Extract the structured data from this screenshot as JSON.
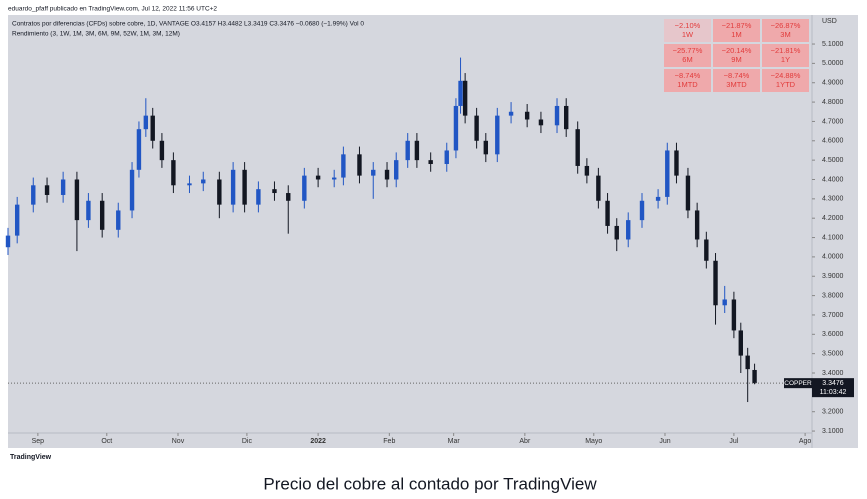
{
  "chart_data": {
    "type": "candlestick",
    "attribution": "eduardo_pfaff publicado en TradingView.com, Jul 12, 2022 11:56 UTC+2",
    "legend": "Contratos por diferencias (CFDs) sobre cobre, 1D, VANTAGE  O3.4157  H3.4482  L3.3419  C3.3476  −0.0680 (−1.99%)  Vol 0",
    "indicator": "Rendimiento (3, 1W, 1M, 3M, 6M, 9M, 52W, 1M, 3M, 12M)",
    "y_unit": "USD",
    "symbol": "COPPER",
    "countdown": "11:03:42",
    "logo": "TradingView",
    "caption": "Precio del cobre al contado por TradingView",
    "up_color": "#2156c4",
    "down_color": "#131722",
    "performance": [
      {
        "value": "−2.10%",
        "period": "1W"
      },
      {
        "value": "−21.87%",
        "period": "1M"
      },
      {
        "value": "−26.87%",
        "period": "3M"
      },
      {
        "value": "−25.77%",
        "period": "6M"
      },
      {
        "value": "−20.14%",
        "period": "9M"
      },
      {
        "value": "−21.81%",
        "period": "1Y"
      },
      {
        "value": "−8.74%",
        "period": "1MTD"
      },
      {
        "value": "−8.74%",
        "period": "3MTD"
      },
      {
        "value": "−24.88%",
        "period": "1YTD"
      }
    ],
    "xlim": [
      18,
      368
    ],
    "xticks": [
      {
        "value": 31,
        "label": "Sep"
      },
      {
        "value": 61,
        "label": "Oct"
      },
      {
        "value": 92,
        "label": "Nov"
      },
      {
        "value": 122,
        "label": "Dic"
      },
      {
        "value": 153,
        "label": "2022"
      },
      {
        "value": 184,
        "label": "Feb"
      },
      {
        "value": 212,
        "label": "Mar"
      },
      {
        "value": 243,
        "label": "Abr"
      },
      {
        "value": 273,
        "label": "Mayo"
      },
      {
        "value": 304,
        "label": "Jun"
      },
      {
        "value": 334,
        "label": "Jul"
      },
      {
        "value": 365,
        "label": "Ago"
      }
    ],
    "ylim": [
      3.09,
      5.25
    ],
    "yticks": [
      {
        "value": 3.1,
        "label": "3.1000"
      },
      {
        "value": 3.2,
        "label": "3.2000"
      },
      {
        "value": 3.3,
        "label": "3.3000"
      },
      {
        "value": 3.4,
        "label": "3.4000"
      },
      {
        "value": 3.5,
        "label": "3.5000"
      },
      {
        "value": 3.6,
        "label": "3.6000"
      },
      {
        "value": 3.7,
        "label": "3.7000"
      },
      {
        "value": 3.8,
        "label": "3.8000"
      },
      {
        "value": 3.9,
        "label": "3.9000"
      },
      {
        "value": 4.0,
        "label": "4.0000"
      },
      {
        "value": 4.1,
        "label": "4.1000"
      },
      {
        "value": 4.2,
        "label": "4.2000"
      },
      {
        "value": 4.3,
        "label": "4.3000"
      },
      {
        "value": 4.4,
        "label": "4.4000"
      },
      {
        "value": 4.5,
        "label": "4.5000"
      },
      {
        "value": 4.6,
        "label": "4.6000"
      },
      {
        "value": 4.7,
        "label": "4.7000"
      },
      {
        "value": 4.8,
        "label": "4.8000"
      },
      {
        "value": 4.9,
        "label": "4.9000"
      },
      {
        "value": 5.0,
        "label": "5.0000"
      },
      {
        "value": 5.1,
        "label": "5.1000"
      }
    ],
    "x": [
      18,
      22,
      29,
      35,
      42,
      48,
      53,
      59,
      66,
      72,
      75,
      78,
      81,
      85,
      90,
      97,
      103,
      110,
      116,
      121,
      127,
      134,
      140,
      147,
      153,
      160,
      164,
      171,
      177,
      183,
      187,
      192,
      196,
      202,
      209,
      213,
      215,
      217,
      222,
      226,
      231,
      237,
      244,
      250,
      257,
      261,
      266,
      270,
      275,
      279,
      283,
      288,
      294,
      301,
      305,
      309,
      314,
      318,
      322,
      326,
      330,
      334,
      337,
      340,
      343
    ],
    "open": [
      4.05,
      4.11,
      4.27,
      4.37,
      4.32,
      4.4,
      4.19,
      4.29,
      4.14,
      4.24,
      4.45,
      4.66,
      4.73,
      4.6,
      4.5,
      4.37,
      4.38,
      4.4,
      4.27,
      4.45,
      4.27,
      4.35,
      4.33,
      4.29,
      4.42,
      4.4,
      4.41,
      4.53,
      4.42,
      4.45,
      4.4,
      4.5,
      4.6,
      4.5,
      4.48,
      4.55,
      4.78,
      4.91,
      4.73,
      4.6,
      4.53,
      4.73,
      4.75,
      4.71,
      4.68,
      4.78,
      4.66,
      4.47,
      4.42,
      4.29,
      4.16,
      4.09,
      4.19,
      4.29,
      4.31,
      4.55,
      4.42,
      4.24,
      4.09,
      3.98,
      3.75,
      3.78,
      3.62,
      3.49,
      3.4157
    ],
    "high": [
      4.15,
      4.31,
      4.41,
      4.41,
      4.44,
      4.44,
      4.33,
      4.33,
      4.28,
      4.49,
      4.7,
      4.82,
      4.77,
      4.64,
      4.54,
      4.42,
      4.44,
      4.44,
      4.49,
      4.49,
      4.39,
      4.39,
      4.37,
      4.46,
      4.46,
      4.45,
      4.57,
      4.57,
      4.49,
      4.49,
      4.54,
      4.64,
      4.64,
      4.54,
      4.59,
      4.82,
      5.03,
      4.95,
      4.77,
      4.64,
      4.77,
      4.8,
      4.79,
      4.75,
      4.82,
      4.82,
      4.7,
      4.51,
      4.46,
      4.33,
      4.2,
      4.23,
      4.33,
      4.35,
      4.59,
      4.59,
      4.46,
      4.28,
      4.13,
      4.02,
      3.85,
      3.82,
      3.66,
      3.53,
      3.4482
    ],
    "low": [
      4.01,
      4.07,
      4.23,
      4.28,
      4.28,
      4.03,
      4.15,
      4.1,
      4.1,
      4.2,
      4.41,
      4.62,
      4.56,
      4.46,
      4.33,
      4.33,
      4.34,
      4.2,
      4.23,
      4.23,
      4.23,
      4.29,
      4.12,
      4.25,
      4.36,
      4.36,
      4.37,
      4.38,
      4.3,
      4.36,
      4.36,
      4.46,
      4.46,
      4.44,
      4.44,
      4.51,
      4.74,
      4.69,
      4.56,
      4.49,
      4.49,
      4.69,
      4.67,
      4.64,
      4.64,
      4.62,
      4.43,
      4.38,
      4.25,
      4.12,
      4.03,
      4.05,
      4.15,
      4.25,
      4.27,
      4.38,
      4.2,
      4.05,
      3.94,
      3.65,
      3.71,
      3.58,
      3.4,
      3.25,
      3.3419
    ],
    "close": [
      4.11,
      4.27,
      4.37,
      4.32,
      4.4,
      4.19,
      4.29,
      4.14,
      4.24,
      4.45,
      4.66,
      4.73,
      4.6,
      4.5,
      4.37,
      4.38,
      4.4,
      4.27,
      4.45,
      4.27,
      4.35,
      4.33,
      4.29,
      4.42,
      4.4,
      4.41,
      4.53,
      4.42,
      4.45,
      4.4,
      4.5,
      4.6,
      4.5,
      4.48,
      4.55,
      4.78,
      4.91,
      4.73,
      4.6,
      4.53,
      4.73,
      4.75,
      4.71,
      4.68,
      4.78,
      4.66,
      4.47,
      4.42,
      4.29,
      4.16,
      4.09,
      4.19,
      4.29,
      4.31,
      4.55,
      4.42,
      4.24,
      4.09,
      3.98,
      3.75,
      3.78,
      3.62,
      3.49,
      3.42,
      3.3476
    ]
  }
}
